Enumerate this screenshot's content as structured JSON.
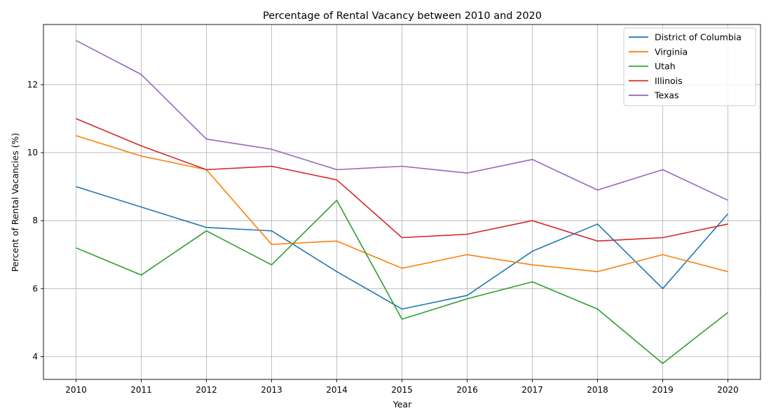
{
  "chart_data": {
    "type": "line",
    "title": "Percentage of Rental Vacancy between 2010 and 2020",
    "xlabel": "Year",
    "ylabel": "Percent of Rental Vacancies (%)",
    "x": [
      "2010",
      "2011",
      "2012",
      "2013",
      "2014",
      "2015",
      "2016",
      "2017",
      "2018",
      "2019",
      "2020"
    ],
    "xlim": [
      2009.5,
      2020.5
    ],
    "ylim": [
      3.33,
      13.77
    ],
    "yticks": [
      4,
      6,
      8,
      10,
      12
    ],
    "grid": true,
    "legend_position": "top-right",
    "series": [
      {
        "name": "District of Columbia",
        "color": "#1f77b4",
        "values": [
          9.0,
          8.4,
          7.8,
          7.7,
          6.5,
          5.4,
          5.8,
          7.1,
          7.9,
          6.0,
          8.2
        ]
      },
      {
        "name": "Virginia",
        "color": "#ff7f0e",
        "values": [
          10.5,
          9.9,
          9.5,
          7.3,
          7.4,
          6.6,
          7.0,
          6.7,
          6.5,
          7.0,
          6.5
        ]
      },
      {
        "name": "Utah",
        "color": "#2ca02c",
        "values": [
          7.2,
          6.4,
          7.7,
          6.7,
          8.6,
          5.1,
          5.7,
          6.2,
          5.4,
          3.8,
          5.3
        ]
      },
      {
        "name": "Illinois",
        "color": "#d62728",
        "values": [
          11.0,
          10.2,
          9.5,
          9.6,
          9.2,
          7.5,
          7.6,
          8.0,
          7.4,
          7.5,
          7.9
        ]
      },
      {
        "name": "Texas",
        "color": "#9467bd",
        "values": [
          13.3,
          12.3,
          10.4,
          10.1,
          9.5,
          9.6,
          9.4,
          9.8,
          8.9,
          9.5,
          8.6
        ]
      }
    ]
  }
}
